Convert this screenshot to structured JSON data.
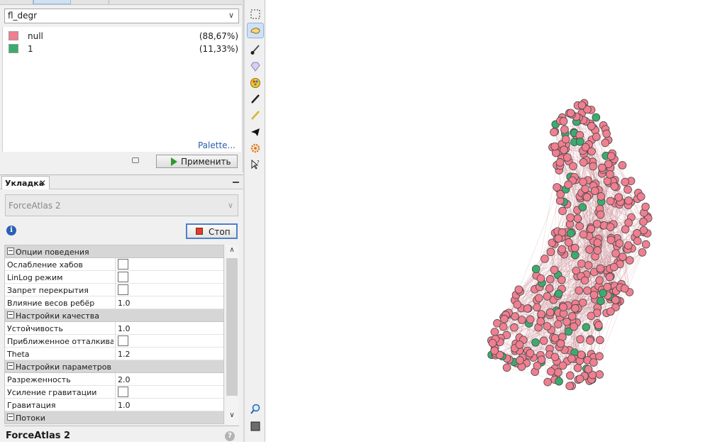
{
  "partition": {
    "attribute": "fl_degr",
    "items": [
      {
        "label": "null",
        "percent": "(88,67%)",
        "color": "#f07f90"
      },
      {
        "label": "1",
        "percent": "(11,33%)",
        "color": "#3cab6e"
      }
    ],
    "palette_link": "Palette...",
    "apply_label": "Применить"
  },
  "layout_panel": {
    "tab_title": "Укладка",
    "algorithm": "ForceAtlas 2",
    "stop_label": "Стоп",
    "footer_title": "ForceAtlas 2",
    "sections": [
      {
        "title": "Опции поведения",
        "rows": [
          {
            "name": "Ослабление хабов",
            "type": "checkbox",
            "checked": false
          },
          {
            "name": "LinLog режим",
            "type": "checkbox",
            "checked": false
          },
          {
            "name": "Запрет перекрытия",
            "type": "checkbox",
            "checked": false
          },
          {
            "name": "Влияние весов ребёр",
            "type": "value",
            "value": "1.0"
          }
        ]
      },
      {
        "title": "Настройки качества",
        "rows": [
          {
            "name": "Устойчивость",
            "type": "value",
            "value": "1.0"
          },
          {
            "name": "Приближенное отталкивание",
            "type": "checkbox",
            "checked": false
          },
          {
            "name": "Theta",
            "type": "value",
            "value": "1.2"
          }
        ]
      },
      {
        "title": "Настройки параметров",
        "rows": [
          {
            "name": "Разреженность",
            "type": "value",
            "value": "2.0"
          },
          {
            "name": "Усиление гравитации",
            "type": "checkbox",
            "checked": false
          },
          {
            "name": "Гравитация",
            "type": "value",
            "value": "1.0"
          }
        ]
      },
      {
        "title": "Потоки",
        "rows": []
      }
    ]
  },
  "toolbar": {
    "tools": [
      {
        "icon": "rectangle-select-icon",
        "active": false
      },
      {
        "icon": "lasso-select-icon",
        "active": true
      },
      {
        "icon": "brush-icon",
        "active": false
      },
      {
        "icon": "diamond-icon",
        "active": false
      },
      {
        "icon": "color-palette-icon",
        "active": false
      },
      {
        "icon": "pencil-icon",
        "active": false
      },
      {
        "icon": "edge-pencil-icon",
        "active": false
      },
      {
        "icon": "airplane-icon",
        "active": false
      },
      {
        "icon": "gear-icon",
        "active": false
      },
      {
        "icon": "help-cursor-icon",
        "active": false
      },
      {
        "icon": "zoom-icon",
        "active": false
      },
      {
        "icon": "background-color-icon",
        "active": false
      }
    ]
  },
  "graph": {
    "node_color_null": "#f07f90",
    "node_color_1": "#3cab6e",
    "edge_color": "#c9878f"
  }
}
